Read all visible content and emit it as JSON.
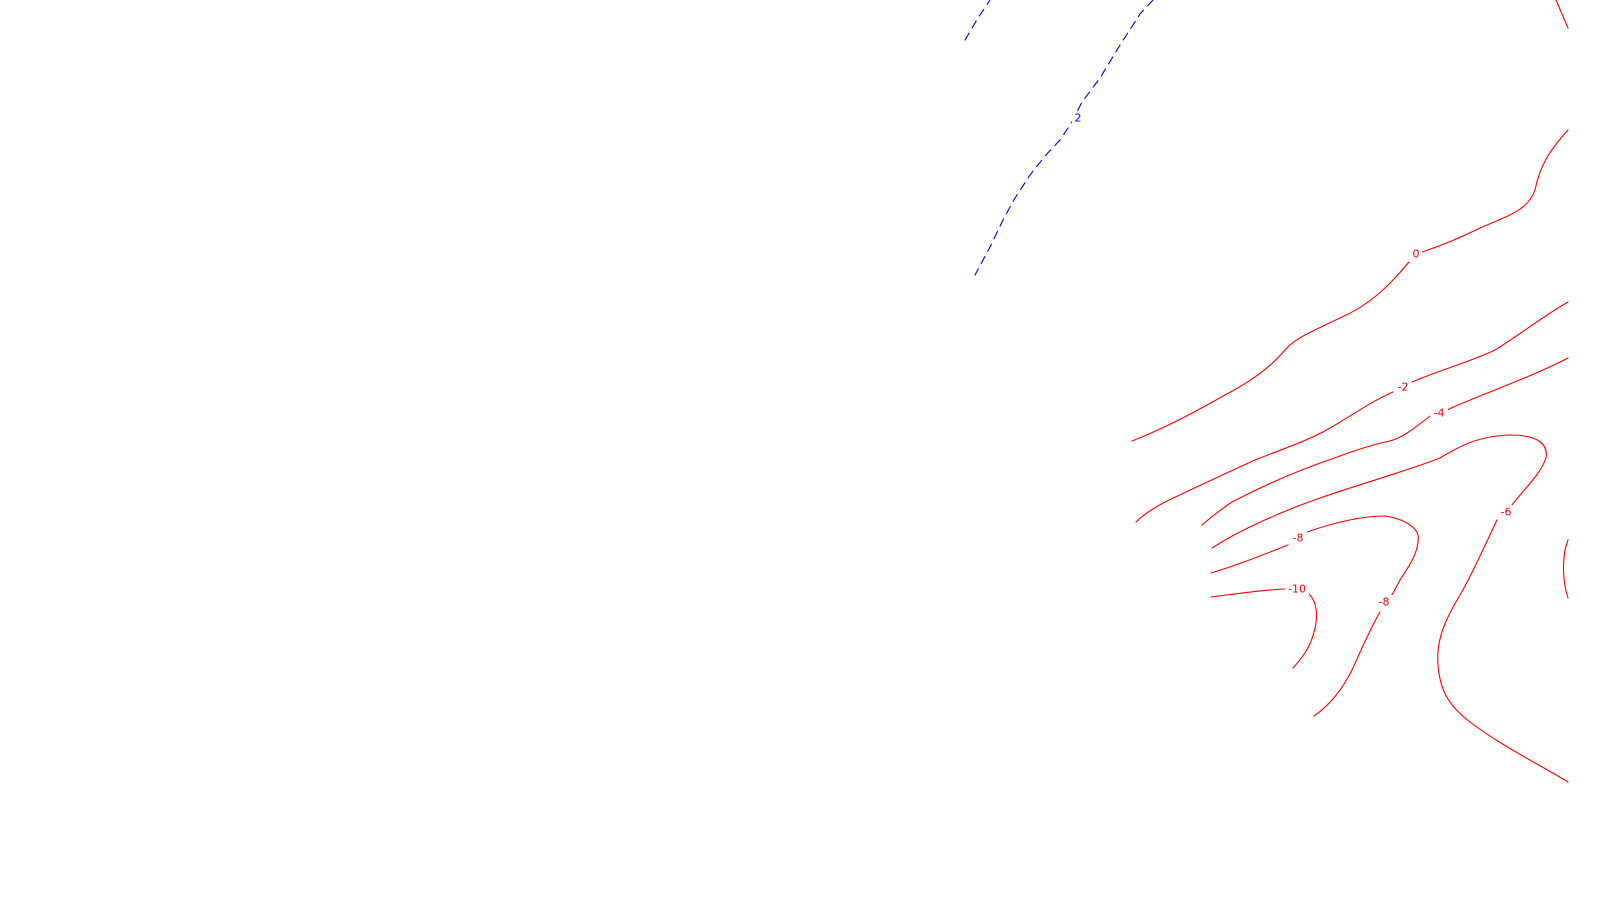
{
  "map": {
    "background": "#ffffff",
    "positive_color": "#0000ff",
    "negative_color": "#ff0000",
    "contours": [
      {
        "id": "pos-2",
        "value": 2,
        "label": "2",
        "style": "dashed",
        "sign": "positive"
      },
      {
        "id": "zero",
        "value": 0,
        "label": "0",
        "style": "solid",
        "sign": "negative"
      },
      {
        "id": "neg-2",
        "value": -2,
        "label": "-2",
        "style": "solid",
        "sign": "negative"
      },
      {
        "id": "neg-4",
        "value": -4,
        "label": "-4",
        "style": "solid",
        "sign": "negative"
      },
      {
        "id": "neg-6",
        "value": -6,
        "label": "-6",
        "style": "solid",
        "sign": "negative"
      },
      {
        "id": "neg-8a",
        "value": -8,
        "label": "-8",
        "style": "solid",
        "sign": "negative"
      },
      {
        "id": "neg-8b",
        "value": -8,
        "label": "-8",
        "style": "solid",
        "sign": "negative"
      },
      {
        "id": "neg-10",
        "value": -10,
        "label": "-10",
        "style": "solid",
        "sign": "negative"
      }
    ]
  }
}
